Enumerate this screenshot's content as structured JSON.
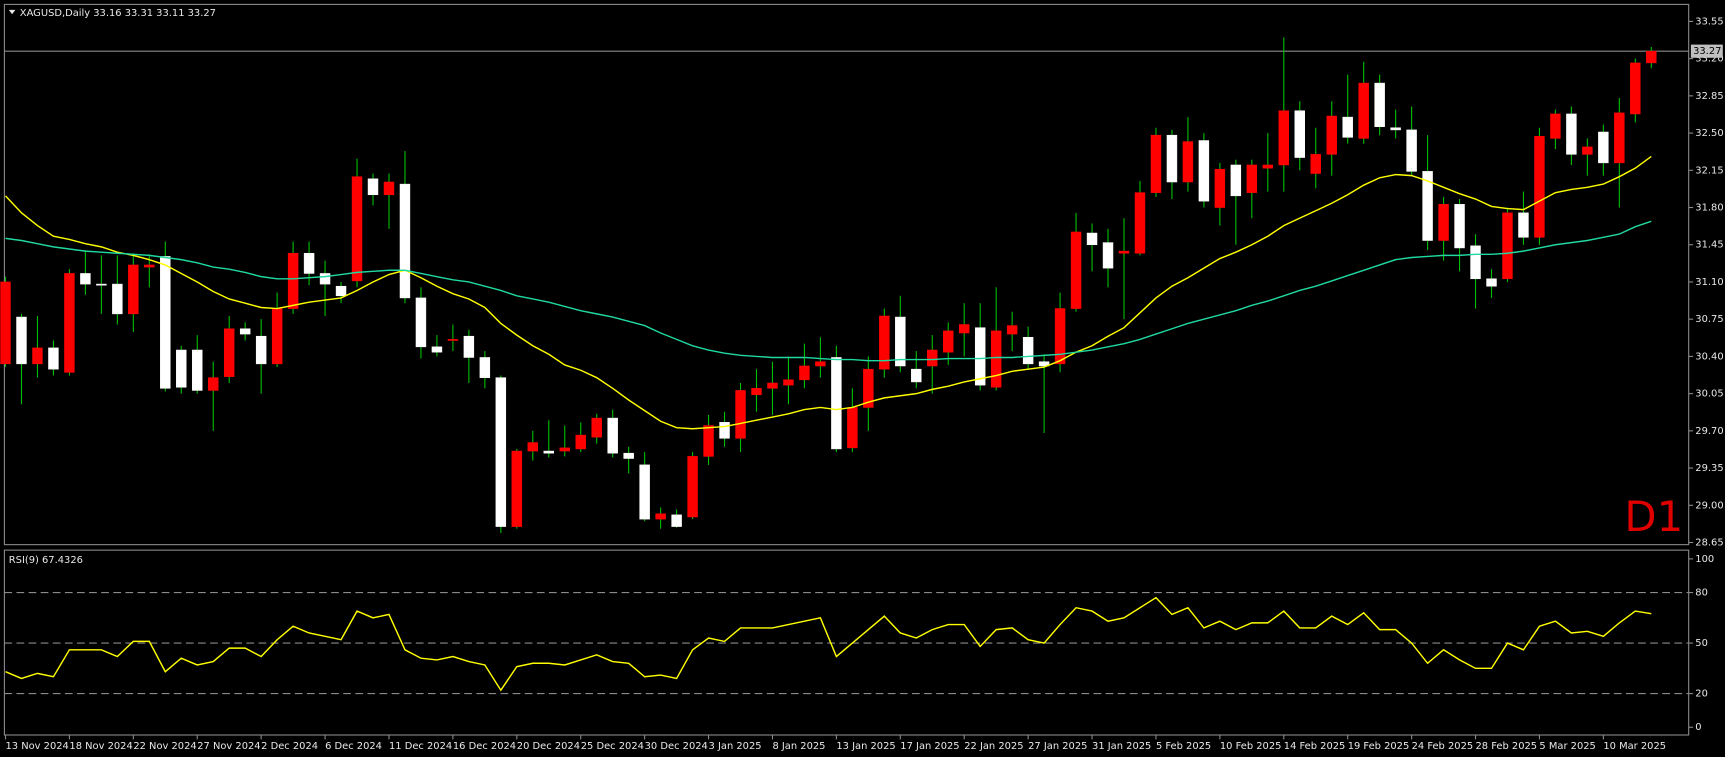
{
  "chart_data": [
    {
      "type": "candlestick",
      "title": "XAGUSD,Daily 33.16 33.31 33.11 33.27",
      "annotation": "D1",
      "categories": [
        "13 Nov 2024",
        null,
        null,
        null,
        "18 Nov 2024",
        null,
        null,
        null,
        "22 Nov 2024",
        null,
        null,
        null,
        "27 Nov 2024",
        null,
        null,
        null,
        "2 Dec 2024",
        null,
        null,
        null,
        "6 Dec 2024",
        null,
        null,
        null,
        "11 Dec 2024",
        null,
        null,
        null,
        "16 Dec 2024",
        null,
        null,
        null,
        "20 Dec 2024",
        null,
        null,
        null,
        "25 Dec 2024",
        null,
        null,
        null,
        "30 Dec 2024",
        null,
        null,
        null,
        "3 Jan 2025",
        null,
        null,
        null,
        "8 Jan 2025",
        null,
        null,
        null,
        "13 Jan 2025",
        null,
        null,
        null,
        "17 Jan 2025",
        null,
        null,
        null,
        "22 Jan 2025",
        null,
        null,
        null,
        "27 Jan 2025",
        null,
        null,
        null,
        "31 Jan 2025",
        null,
        null,
        null,
        "5 Feb 2025",
        null,
        null,
        null,
        "10 Feb 2025",
        null,
        null,
        null,
        "14 Feb 2025",
        null,
        null,
        null,
        "19 Feb 2025",
        null,
        null,
        null,
        "24 Feb 2025",
        null,
        null,
        null,
        "28 Feb 2025",
        null,
        null,
        null,
        "5 Mar 2025",
        null,
        null,
        null,
        "10 Mar 2025",
        null,
        null,
        null
      ],
      "open": [
        30.33,
        30.77,
        30.33,
        30.48,
        30.25,
        31.18,
        31.08,
        31.08,
        30.8,
        31.24,
        31.34,
        30.46,
        30.46,
        30.08,
        30.21,
        30.66,
        30.59,
        30.33,
        30.85,
        31.37,
        31.18,
        31.06,
        31.11,
        32.07,
        31.92,
        32.02,
        30.95,
        30.49,
        30.55,
        30.59,
        30.39,
        30.2,
        28.8,
        29.51,
        29.51,
        29.51,
        29.53,
        29.64,
        29.82,
        29.49,
        29.38,
        28.87,
        28.91,
        28.89,
        29.46,
        29.78,
        29.63,
        30.04,
        30.1,
        30.13,
        30.18,
        30.31,
        30.39,
        29.54,
        29.92,
        30.28,
        30.77,
        30.28,
        30.31,
        30.44,
        30.62,
        30.67,
        30.11,
        30.61,
        30.58,
        30.35,
        30.33,
        30.85,
        31.56,
        31.47,
        31.37,
        31.37,
        31.94,
        32.48,
        32.04,
        32.43,
        31.8,
        32.2,
        31.94,
        32.17,
        32.2,
        32.71,
        32.12,
        32.3,
        32.65,
        32.45,
        32.97,
        32.55,
        32.53,
        32.14,
        31.49,
        31.83,
        31.44,
        31.13,
        31.13,
        31.75,
        31.52,
        32.45,
        32.68,
        32.3,
        32.51,
        32.22,
        32.68,
        33.16
      ],
      "high": [
        31.15,
        30.8,
        30.78,
        30.55,
        31.22,
        31.4,
        31.35,
        31.35,
        31.37,
        31.36,
        31.48,
        30.5,
        30.6,
        30.35,
        30.78,
        30.72,
        30.75,
        31.0,
        31.48,
        31.48,
        31.3,
        31.1,
        32.26,
        32.12,
        32.12,
        32.33,
        31.05,
        30.6,
        30.7,
        30.65,
        30.45,
        30.22,
        29.53,
        29.7,
        29.8,
        29.75,
        29.78,
        29.86,
        29.9,
        29.55,
        29.5,
        28.98,
        28.96,
        29.5,
        29.85,
        29.88,
        30.15,
        30.28,
        30.35,
        30.4,
        30.52,
        30.58,
        30.5,
        30.1,
        30.4,
        30.85,
        30.97,
        30.45,
        30.6,
        30.72,
        30.9,
        30.9,
        31.05,
        30.82,
        30.68,
        30.42,
        31.0,
        31.75,
        31.65,
        31.6,
        31.7,
        32.05,
        32.55,
        32.53,
        32.65,
        32.5,
        32.22,
        32.25,
        32.25,
        32.5,
        33.4,
        32.8,
        32.55,
        32.8,
        33.05,
        33.17,
        33.05,
        32.72,
        32.75,
        32.48,
        31.9,
        31.88,
        31.55,
        31.22,
        31.8,
        31.95,
        32.55,
        32.72,
        32.75,
        32.45,
        32.58,
        32.83,
        33.2,
        33.31
      ],
      "low": [
        30.3,
        29.95,
        30.2,
        30.22,
        30.22,
        30.98,
        30.8,
        30.7,
        30.63,
        31.05,
        30.07,
        30.05,
        30.05,
        29.7,
        30.15,
        30.55,
        30.05,
        30.3,
        30.8,
        31.07,
        30.78,
        30.9,
        31.05,
        31.82,
        31.6,
        30.9,
        30.38,
        30.4,
        30.45,
        30.15,
        30.1,
        28.74,
        28.78,
        29.42,
        29.45,
        29.46,
        29.5,
        29.58,
        29.45,
        29.3,
        28.85,
        28.78,
        28.79,
        28.87,
        29.38,
        29.55,
        29.5,
        29.88,
        29.85,
        29.95,
        30.1,
        30.2,
        29.5,
        29.5,
        29.7,
        30.2,
        30.25,
        30.1,
        30.05,
        30.32,
        30.4,
        30.08,
        30.08,
        30.45,
        30.28,
        29.68,
        30.25,
        30.82,
        31.2,
        31.05,
        30.75,
        31.35,
        31.9,
        31.88,
        31.95,
        31.8,
        31.63,
        31.45,
        31.7,
        31.95,
        31.95,
        32.15,
        31.98,
        32.1,
        32.4,
        32.4,
        32.48,
        32.45,
        32.1,
        31.4,
        31.3,
        31.2,
        30.85,
        30.95,
        31.1,
        31.45,
        31.45,
        32.35,
        32.2,
        32.1,
        32.1,
        31.8,
        32.6,
        33.11
      ],
      "close": [
        31.1,
        30.33,
        30.48,
        30.28,
        31.18,
        31.08,
        31.07,
        30.8,
        31.26,
        31.26,
        30.1,
        30.11,
        30.08,
        30.2,
        30.66,
        30.61,
        30.33,
        30.85,
        31.37,
        31.18,
        31.08,
        30.97,
        32.09,
        31.92,
        32.04,
        30.95,
        30.49,
        30.44,
        30.56,
        30.39,
        30.2,
        28.8,
        29.51,
        29.59,
        29.49,
        29.54,
        29.66,
        29.82,
        29.49,
        29.44,
        28.87,
        28.92,
        28.8,
        29.46,
        29.75,
        29.63,
        30.08,
        30.1,
        30.15,
        30.18,
        30.31,
        30.35,
        29.53,
        29.92,
        30.28,
        30.78,
        30.31,
        30.16,
        30.46,
        30.64,
        30.7,
        30.13,
        30.64,
        30.69,
        30.33,
        30.31,
        30.85,
        31.57,
        31.45,
        31.23,
        31.39,
        31.94,
        32.48,
        32.04,
        32.42,
        31.86,
        32.16,
        31.91,
        32.2,
        32.2,
        32.71,
        32.27,
        32.3,
        32.66,
        32.46,
        32.97,
        32.56,
        32.53,
        32.14,
        31.49,
        31.83,
        31.42,
        31.13,
        31.06,
        31.75,
        31.52,
        32.47,
        32.68,
        32.3,
        32.37,
        32.22,
        32.69,
        33.16,
        33.27
      ],
      "up_color": "#ff0000",
      "down_color": "#ffffff",
      "wick_color": "#00c000",
      "series": [
        {
          "color": "#ffff00",
          "values": [
            31.91,
            31.75,
            31.63,
            31.53,
            31.5,
            31.46,
            31.43,
            31.38,
            31.35,
            31.31,
            31.26,
            31.18,
            31.1,
            31.01,
            30.94,
            30.9,
            30.86,
            30.85,
            30.88,
            30.91,
            30.93,
            30.95,
            31.02,
            31.1,
            31.17,
            31.21,
            31.14,
            31.06,
            30.99,
            30.94,
            30.86,
            30.71,
            30.6,
            30.5,
            30.42,
            30.32,
            30.27,
            30.2,
            30.1,
            29.99,
            29.89,
            29.79,
            29.73,
            29.72,
            29.73,
            29.74,
            29.77,
            29.8,
            29.83,
            29.86,
            29.9,
            29.92,
            29.9,
            29.92,
            29.97,
            30.01,
            30.03,
            30.05,
            30.09,
            30.12,
            30.16,
            30.19,
            30.22,
            30.26,
            30.28,
            30.3,
            30.36,
            30.44,
            30.5,
            30.59,
            30.67,
            30.81,
            30.95,
            31.06,
            31.14,
            31.23,
            31.32,
            31.38,
            31.45,
            31.53,
            31.63,
            31.7,
            31.77,
            31.84,
            31.92,
            32.01,
            32.08,
            32.11,
            32.1,
            32.05,
            31.99,
            31.93,
            31.88,
            31.81,
            31.79,
            31.78,
            31.86,
            31.94,
            31.97,
            31.99,
            32.02,
            32.09,
            32.17,
            32.28
          ]
        },
        {
          "color": "#20d8a0",
          "values": [
            31.51,
            31.49,
            31.46,
            31.43,
            31.41,
            31.39,
            31.38,
            31.37,
            31.36,
            31.35,
            31.33,
            31.31,
            31.28,
            31.24,
            31.22,
            31.19,
            31.15,
            31.13,
            31.13,
            31.14,
            31.15,
            31.17,
            31.19,
            31.2,
            31.21,
            31.21,
            31.18,
            31.15,
            31.12,
            31.1,
            31.06,
            31.02,
            30.97,
            30.94,
            30.91,
            30.87,
            30.83,
            30.8,
            30.77,
            30.73,
            30.69,
            30.62,
            30.56,
            30.5,
            30.46,
            30.43,
            30.41,
            30.4,
            30.39,
            30.39,
            30.39,
            30.38,
            30.37,
            30.37,
            30.36,
            30.36,
            30.37,
            30.37,
            30.37,
            30.38,
            30.38,
            30.38,
            30.39,
            30.39,
            30.4,
            30.41,
            30.42,
            30.44,
            30.46,
            30.49,
            30.52,
            30.56,
            30.61,
            30.66,
            30.71,
            30.75,
            30.79,
            30.83,
            30.88,
            30.92,
            30.97,
            31.02,
            31.06,
            31.11,
            31.16,
            31.21,
            31.26,
            31.31,
            31.33,
            31.34,
            31.35,
            31.35,
            31.36,
            31.36,
            31.37,
            31.39,
            31.42,
            31.45,
            31.47,
            31.49,
            31.52,
            31.55,
            31.62,
            31.67
          ]
        }
      ],
      "last_price": 33.27,
      "ylim": [
        28.63,
        33.71
      ],
      "yticks": [
        33.55,
        {
          "value": 33.2,
          "label": "33.20"
        },
        32.85,
        {
          "value": 32.5,
          "label": "32.50"
        },
        32.15,
        {
          "value": 31.8,
          "label": "31.80"
        },
        31.45,
        {
          "value": 31.1,
          "label": "31.10"
        },
        30.75,
        {
          "value": 30.4,
          "label": "30.40"
        },
        30.05,
        {
          "value": 29.7,
          "label": "29.70"
        },
        29.35,
        {
          "value": 29,
          "label": "29.00"
        },
        28.65
      ]
    },
    {
      "type": "line",
      "title": "RSI(9) 67.4326",
      "color": "#ffff00",
      "values": [
        33,
        29,
        32,
        30,
        46,
        46,
        46,
        42,
        51,
        51,
        33,
        41,
        37,
        39,
        47,
        47,
        42,
        52,
        60,
        56,
        54,
        52,
        69,
        65,
        67,
        46,
        41,
        40,
        42,
        39,
        37,
        22,
        36,
        38,
        38,
        37,
        40,
        43,
        39,
        38,
        30,
        31,
        29,
        46,
        53,
        51,
        59,
        59,
        59,
        61,
        63,
        65,
        42,
        50,
        58,
        66,
        56,
        53,
        58,
        61,
        61,
        48,
        58,
        59,
        52,
        50,
        61,
        71,
        69,
        63,
        65,
        71,
        77,
        67,
        71,
        59,
        63,
        58,
        62,
        62,
        69,
        59,
        59,
        66,
        61,
        68,
        58,
        58,
        50,
        38,
        46,
        40,
        35,
        35,
        50,
        46,
        60,
        63,
        56,
        57,
        54,
        62,
        69,
        67.4326
      ],
      "ylim": [
        -4.6,
        105.2
      ],
      "yticks": [
        100,
        80,
        50,
        20,
        0
      ],
      "levels": [
        80,
        50,
        20
      ]
    }
  ]
}
